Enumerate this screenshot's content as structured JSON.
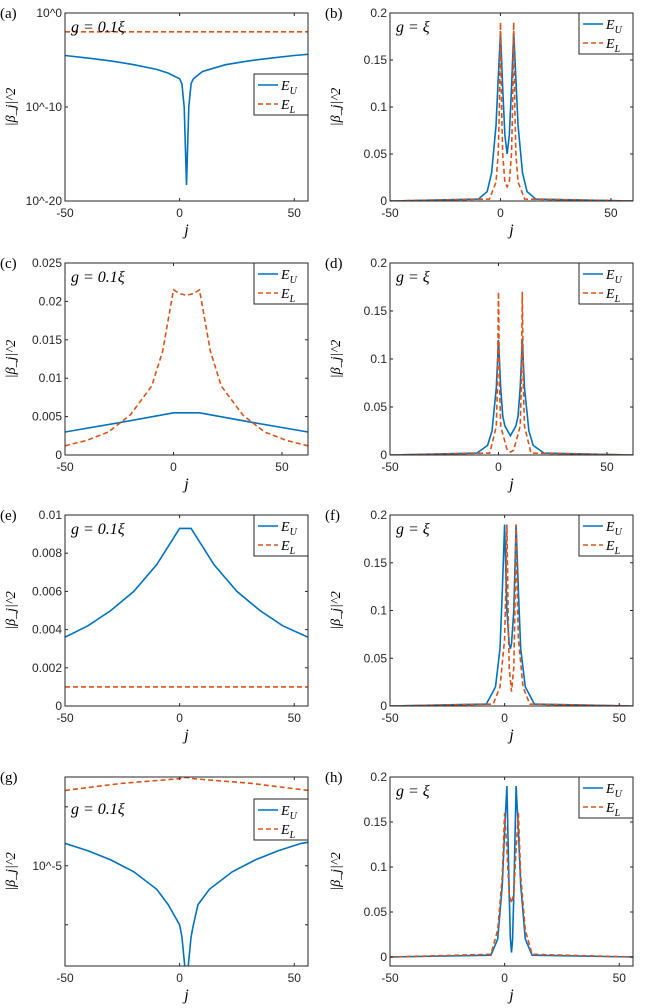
{
  "colors": {
    "E_U": "#0072BD",
    "E_L": "#D95319"
  },
  "chart_data": [
    {
      "id": "a",
      "panel_label": "(a)",
      "type": "line",
      "yscale": "log",
      "annotation": "g = 0.1ξ",
      "xlabel": "j",
      "ylabel": "|β_j|^2",
      "xlim": [
        -50,
        56
      ],
      "ylim": [
        1e-20,
        1
      ],
      "xticks": [
        -50,
        0,
        50
      ],
      "xticklabels": [
        "-50",
        "0",
        "50"
      ],
      "yticks": [
        1e-20,
        1e-10,
        1
      ],
      "yticklabels": [
        "10^-20",
        "10^-10",
        "10^0"
      ],
      "legend": "center-right",
      "series": [
        {
          "name": "E_U",
          "style": "solid",
          "x": [
            -50,
            -40,
            -30,
            -20,
            -10,
            -5,
            0,
            1,
            2,
            3,
            4,
            5,
            6,
            10,
            20,
            30,
            40,
            50,
            56
          ],
          "y": [
            3e-05,
            1.6e-05,
            8e-06,
            3.2e-06,
            1e-06,
            4e-07,
            1e-07,
            3e-08,
            1e-10,
            5e-19,
            1e-10,
            3e-08,
            1e-07,
            6e-07,
            3.2e-06,
            8e-06,
            1.6e-05,
            3e-05,
            4e-05
          ]
        },
        {
          "name": "E_L",
          "style": "dashed",
          "x": [
            -50,
            56
          ],
          "y": [
            0.01,
            0.01
          ]
        }
      ]
    },
    {
      "id": "b",
      "panel_label": "(b)",
      "type": "line",
      "yscale": "linear",
      "annotation": "g = ξ",
      "xlabel": "j",
      "ylabel": "|β_j|^2",
      "xlim": [
        -50,
        60
      ],
      "ylim": [
        0,
        0.2
      ],
      "xticks": [
        -50,
        0,
        50
      ],
      "xticklabels": [
        "-50",
        "0",
        "50"
      ],
      "yticks": [
        0,
        0.05,
        0.1,
        0.15,
        0.2
      ],
      "yticklabels": [
        "0",
        "0.05",
        "0.1",
        "0.15",
        "0.2"
      ],
      "legend": "top-right",
      "series": [
        {
          "name": "E_U",
          "style": "solid",
          "x": [
            -50,
            -10,
            -6,
            -4,
            -2,
            -1,
            0,
            1,
            2,
            3,
            4,
            5,
            6,
            7,
            8,
            10,
            12,
            16,
            60
          ],
          "y": [
            0,
            0.002,
            0.01,
            0.03,
            0.08,
            0.13,
            0.18,
            0.12,
            0.07,
            0.05,
            0.07,
            0.12,
            0.18,
            0.13,
            0.08,
            0.03,
            0.01,
            0.002,
            0
          ]
        },
        {
          "name": "E_L",
          "style": "dashed",
          "x": [
            -50,
            -5,
            -2,
            -1,
            -0.5,
            0,
            0.5,
            1,
            2,
            3,
            4,
            5,
            5.5,
            6,
            6.5,
            7,
            8,
            11,
            60
          ],
          "y": [
            0,
            0.002,
            0.02,
            0.05,
            0.1,
            0.19,
            0.1,
            0.05,
            0.02,
            0.015,
            0.02,
            0.05,
            0.1,
            0.19,
            0.1,
            0.05,
            0.02,
            0.002,
            0
          ]
        }
      ]
    },
    {
      "id": "c",
      "panel_label": "(c)",
      "type": "line",
      "yscale": "linear",
      "annotation": "g = 0.1ξ",
      "xlabel": "j",
      "ylabel": "|β_j|^2",
      "xlim": [
        -50,
        62
      ],
      "ylim": [
        0,
        0.025
      ],
      "xticks": [
        -50,
        0,
        50
      ],
      "xticklabels": [
        "-50",
        "0",
        "50"
      ],
      "yticks": [
        0,
        0.005,
        0.01,
        0.015,
        0.02,
        0.025
      ],
      "yticklabels": [
        "0",
        "0.005",
        "0.01",
        "0.015",
        "0.02",
        "0.025"
      ],
      "legend": "top-right",
      "series": [
        {
          "name": "E_U",
          "style": "solid",
          "x": [
            -50,
            -25,
            0,
            12,
            37,
            62
          ],
          "y": [
            0.003,
            0.0042,
            0.0055,
            0.0055,
            0.0042,
            0.003
          ]
        },
        {
          "name": "E_L",
          "style": "dashed",
          "x": [
            -50,
            -40,
            -30,
            -20,
            -10,
            -5,
            0,
            3,
            6,
            9,
            12,
            17,
            22,
            32,
            42,
            52,
            62
          ],
          "y": [
            0.0012,
            0.0019,
            0.003,
            0.0052,
            0.009,
            0.0135,
            0.0215,
            0.021,
            0.0208,
            0.021,
            0.0215,
            0.0135,
            0.009,
            0.0052,
            0.003,
            0.0019,
            0.0012
          ]
        }
      ]
    },
    {
      "id": "d",
      "panel_label": "(d)",
      "type": "line",
      "yscale": "linear",
      "annotation": "g = ξ",
      "xlabel": "j",
      "ylabel": "|β_j|^2",
      "xlim": [
        -50,
        62
      ],
      "ylim": [
        0,
        0.2
      ],
      "xticks": [
        -50,
        0,
        50
      ],
      "xticklabels": [
        "-50",
        "0",
        "50"
      ],
      "yticks": [
        0,
        0.05,
        0.1,
        0.15,
        0.2
      ],
      "yticklabels": [
        "0",
        "0.05",
        "0.1",
        "0.15",
        "0.2"
      ],
      "legend": "top-right",
      "series": [
        {
          "name": "E_U",
          "style": "solid",
          "x": [
            -50,
            -10,
            -5,
            -3,
            -1,
            0,
            1,
            2,
            3,
            5.5,
            8,
            9,
            10,
            11,
            12,
            14,
            16,
            21,
            62
          ],
          "y": [
            0,
            0.002,
            0.01,
            0.025,
            0.07,
            0.12,
            0.07,
            0.04,
            0.03,
            0.02,
            0.03,
            0.04,
            0.07,
            0.12,
            0.07,
            0.025,
            0.01,
            0.002,
            0
          ]
        },
        {
          "name": "E_L",
          "style": "dashed",
          "x": [
            -50,
            -4,
            -1,
            -0.5,
            0,
            0.5,
            1,
            4,
            5.5,
            7,
            10,
            10.5,
            11,
            11.5,
            12,
            15,
            62
          ],
          "y": [
            0,
            0.002,
            0.03,
            0.07,
            0.17,
            0.07,
            0.03,
            0.005,
            0.003,
            0.005,
            0.03,
            0.07,
            0.17,
            0.07,
            0.03,
            0.002,
            0
          ]
        }
      ]
    },
    {
      "id": "e",
      "panel_label": "(e)",
      "type": "line",
      "yscale": "linear",
      "annotation": "g = 0.1ξ",
      "xlabel": "j",
      "ylabel": "|β_j|^2",
      "xlim": [
        -50,
        56
      ],
      "ylim": [
        0,
        0.01
      ],
      "xticks": [
        -50,
        0,
        50
      ],
      "xticklabels": [
        "-50",
        "0",
        "50"
      ],
      "yticks": [
        0,
        0.002,
        0.004,
        0.006,
        0.008,
        0.01
      ],
      "yticklabels": [
        "0",
        "0.002",
        "0.004",
        "0.006",
        "0.008",
        "0.01"
      ],
      "legend": "top-right",
      "series": [
        {
          "name": "E_U",
          "style": "solid",
          "x": [
            -50,
            -40,
            -30,
            -20,
            -10,
            0,
            5,
            15,
            25,
            35,
            45,
            56
          ],
          "y": [
            0.0036,
            0.0042,
            0.005,
            0.006,
            0.0074,
            0.0093,
            0.0093,
            0.0074,
            0.006,
            0.005,
            0.0042,
            0.0036
          ]
        },
        {
          "name": "E_L",
          "style": "dashed",
          "x": [
            -50,
            56
          ],
          "y": [
            0.001,
            0.001
          ]
        }
      ]
    },
    {
      "id": "f",
      "panel_label": "(f)",
      "type": "line",
      "yscale": "linear",
      "annotation": "g = ξ",
      "xlabel": "j",
      "ylabel": "|β_j|^2",
      "xlim": [
        -50,
        56
      ],
      "ylim": [
        0,
        0.2
      ],
      "xticks": [
        -50,
        0,
        50
      ],
      "xticklabels": [
        "-50",
        "0",
        "50"
      ],
      "yticks": [
        0,
        0.05,
        0.1,
        0.15,
        0.2
      ],
      "yticklabels": [
        "0",
        "0.05",
        "0.1",
        "0.15",
        "0.2"
      ],
      "legend": "top-right",
      "series": [
        {
          "name": "E_U",
          "style": "solid",
          "x": [
            -50,
            -8,
            -4,
            -2,
            -1,
            0,
            1,
            2,
            2.5,
            3,
            4,
            5,
            6,
            7,
            9,
            13,
            56
          ],
          "y": [
            0,
            0.002,
            0.02,
            0.06,
            0.12,
            0.19,
            0.1,
            0.065,
            0.06,
            0.065,
            0.1,
            0.19,
            0.12,
            0.06,
            0.02,
            0.002,
            0
          ]
        },
        {
          "name": "E_L",
          "style": "dashed",
          "x": [
            -50,
            -5,
            -2,
            0,
            0.5,
            1,
            1.5,
            2,
            3,
            4,
            4.5,
            5,
            5.5,
            6,
            8,
            11,
            56
          ],
          "y": [
            0,
            0.002,
            0.02,
            0.07,
            0.12,
            0.19,
            0.1,
            0.04,
            0.015,
            0.04,
            0.1,
            0.19,
            0.12,
            0.07,
            0.02,
            0.002,
            0
          ]
        }
      ]
    },
    {
      "id": "g",
      "panel_label": "(g)",
      "type": "line",
      "yscale": "log",
      "annotation": "g = 0.1ξ",
      "xlabel": "j",
      "ylabel": "|β_j|^2",
      "xlim": [
        -50,
        56
      ],
      "ylim": [
        2e-07,
        0.00032
      ],
      "xticks": [
        -50,
        0,
        50
      ],
      "xticklabels": [
        "-50",
        "0",
        "50"
      ],
      "yticks": [
        0.0001,
        1e-05,
        1e-06
      ],
      "yticklabels": [
        "",
        "10^-5",
        ""
      ],
      "legend": "top-right-lower",
      "series": [
        {
          "name": "E_U",
          "style": "solid",
          "x": [
            -50,
            -40,
            -30,
            -20,
            -10,
            -5,
            0,
            1,
            2,
            3,
            4,
            5,
            6,
            8,
            13,
            23,
            33,
            43,
            53,
            56
          ],
          "y": [
            2.4e-05,
            1.8e-05,
            1.26e-05,
            7.9e-06,
            4e-06,
            2.2e-06,
            1e-06,
            6.3e-07,
            2.5e-07,
            1e-07,
            2.5e-07,
            6.3e-07,
            1e-06,
            2.2e-06,
            4e-06,
            7.9e-06,
            1.26e-05,
            1.8e-05,
            2.4e-05,
            2.5e-05
          ]
        },
        {
          "name": "E_L",
          "style": "dashed",
          "x": [
            -50,
            -25,
            0,
            3,
            6,
            31,
            56
          ],
          "y": [
            0.00019,
            0.00025,
            0.0003,
            0.000316,
            0.0003,
            0.00025,
            0.00019
          ]
        }
      ]
    },
    {
      "id": "h",
      "panel_label": "(h)",
      "type": "line",
      "yscale": "linear",
      "annotation": "g = ξ",
      "xlabel": "j",
      "ylabel": "|β_j|^2",
      "xlim": [
        -50,
        56
      ],
      "ylim": [
        -0.01,
        0.2
      ],
      "xticks": [
        -50,
        0,
        50
      ],
      "xticklabels": [
        "-50",
        "0",
        "50"
      ],
      "yticks": [
        0,
        0.05,
        0.1,
        0.15,
        0.2
      ],
      "yticklabels": [
        "0",
        "0.05",
        "0.1",
        "0.15",
        "0.2"
      ],
      "legend": "top-right",
      "series": [
        {
          "name": "E_U",
          "style": "solid",
          "x": [
            -50,
            -6,
            -3,
            -1,
            0,
            1,
            2,
            2.5,
            3,
            3.5,
            4,
            5,
            6,
            7,
            9,
            12,
            56
          ],
          "y": [
            0,
            0.002,
            0.02,
            0.08,
            0.14,
            0.19,
            0.07,
            0.02,
            0.005,
            0.02,
            0.07,
            0.19,
            0.14,
            0.08,
            0.02,
            0.002,
            0
          ]
        },
        {
          "name": "E_L",
          "style": "dashed",
          "x": [
            -50,
            -6,
            -3,
            -1,
            0,
            1,
            2,
            3,
            4,
            5,
            6,
            7,
            9,
            12,
            56
          ],
          "y": [
            0,
            0.003,
            0.03,
            0.09,
            0.16,
            0.12,
            0.07,
            0.06,
            0.07,
            0.12,
            0.16,
            0.09,
            0.03,
            0.003,
            0
          ]
        }
      ]
    }
  ]
}
